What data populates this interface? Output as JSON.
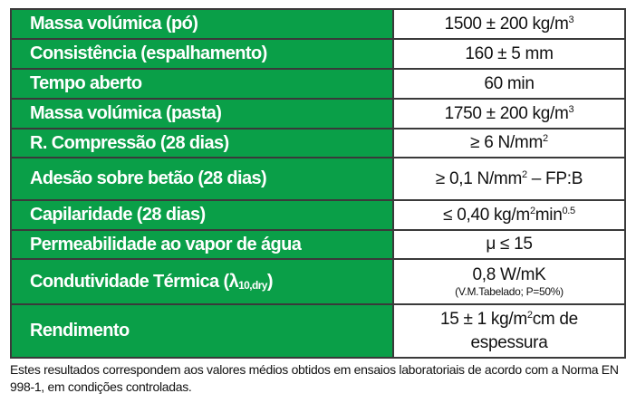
{
  "colors": {
    "label_background": "#0a9f48",
    "label_text": "#ffffff",
    "border": "#3a3a3a"
  },
  "rows": [
    {
      "label": "Massa volúmica (pó)",
      "value": "1500 ± 200 kg/m",
      "value_sup": "3"
    },
    {
      "label": "Consistência (espalhamento)",
      "value": "160 ± 5 mm"
    },
    {
      "label": "Tempo aberto",
      "value": "60 min"
    },
    {
      "label": "Massa volúmica (pasta)",
      "value": "1750 ± 200 kg/m",
      "value_sup": "3"
    },
    {
      "label": "R. Compressão (28 dias)",
      "value": "≥ 6 N/mm",
      "value_sup": "2"
    },
    {
      "label": "Adesão sobre betão (28 dias)",
      "value": "≥ 0,1 N/mm",
      "value_sup": "2",
      "value_after": " – FP:B"
    },
    {
      "label": "Capilaridade (28 dias)",
      "value": "≤ 0,40 kg/m",
      "value_sup": "2",
      "value_after": "min",
      "value_sup2": "0.5"
    },
    {
      "label": "Permeabilidade ao vapor de água",
      "value": "μ ≤ 15"
    },
    {
      "label": "Condutividade Térmica (λ",
      "label_sub": "10,dry",
      "label_after": ")",
      "value": "0,8 W/mK",
      "value_note": "(V.M.Tabelado; P=50%)"
    },
    {
      "label": "Rendimento",
      "value": "15 ± 1 kg/m",
      "value_sup": "2",
      "value_after": "cm de espessura"
    }
  ],
  "footnote": "Estes resultados correspondem aos valores médios obtidos em ensaios laboratoriais de acordo com a Norma EN 998-1, em condições controladas."
}
